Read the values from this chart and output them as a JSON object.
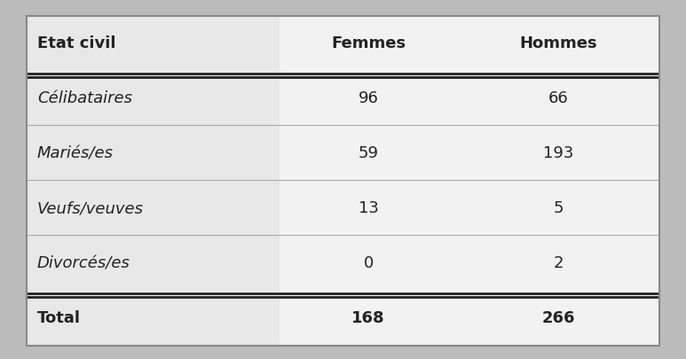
{
  "col_headers": [
    "Etat civil",
    "Femmes",
    "Hommes"
  ],
  "rows": [
    [
      "Célibataires",
      "96",
      "66"
    ],
    [
      "Mariés/es",
      "59",
      "193"
    ],
    [
      "Veufs/veuves",
      "13",
      "5"
    ],
    [
      "Divorcés/es",
      "0",
      "2"
    ]
  ],
  "total_row": [
    "Total",
    "168",
    "266"
  ],
  "table_bg": "#f2f2f2",
  "left_col_bg": "#e8e8e8",
  "right_bg": "#f8f8f8",
  "fig_bg": "#bbbbbb",
  "border_color": "#888888",
  "double_line_color": "#222222",
  "sep_line_color": "#aaaaaa",
  "text_color": "#222222",
  "header_fontsize": 13,
  "row_fontsize": 13,
  "total_fontsize": 13
}
